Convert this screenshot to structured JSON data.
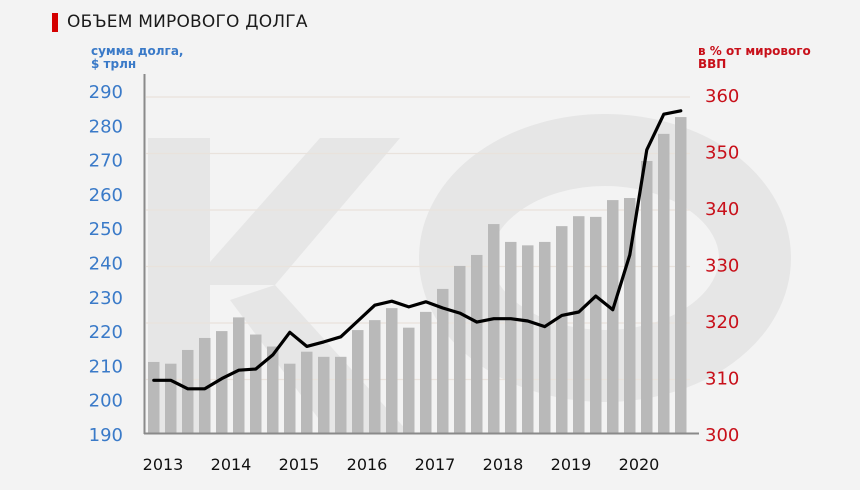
{
  "title": "ОБЪЕМ МИРОВОГО ДОЛГА",
  "left_axis_label_line1": "сумма долга,",
  "left_axis_label_line2": "$ трлн",
  "right_axis_label_line1": "в % от мирового",
  "right_axis_label_line2": "ВВП",
  "colors": {
    "accent": "#d40000",
    "left_axis": "#3a7ac8",
    "right_axis": "#c8101a",
    "bars": "#b9b9b9",
    "line": "#000000",
    "background": "#f3f3f3",
    "watermark": "#e6e6e6"
  },
  "chart_data": {
    "type": "bar+line",
    "title": "ОБЪЕМ МИРОВОГО ДОЛГА",
    "xlabel": "",
    "ylabel": "сумма долга, $ трлн",
    "y2label": "в % от мирового ВВП",
    "ylim": [
      190,
      290
    ],
    "y2lim": [
      300,
      360
    ],
    "left_ticks": [
      190,
      200,
      210,
      220,
      230,
      240,
      250,
      260,
      270,
      280,
      290
    ],
    "right_ticks": [
      300,
      310,
      320,
      330,
      340,
      350,
      360
    ],
    "x_tick_labels": [
      "2013",
      "2014",
      "2015",
      "2016",
      "2017",
      "2018",
      "2019",
      "2020"
    ],
    "grid": true,
    "legend": "none",
    "categories": [
      "2013 Q1",
      "2013 Q2",
      "2013 Q3",
      "2013 Q4",
      "2014 Q1",
      "2014 Q2",
      "2014 Q3",
      "2014 Q4",
      "2015 Q1",
      "2015 Q2",
      "2015 Q3",
      "2015 Q4",
      "2016 Q1",
      "2016 Q2",
      "2016 Q3",
      "2016 Q4",
      "2017 Q1",
      "2017 Q2",
      "2017 Q3",
      "2017 Q4",
      "2018 Q1",
      "2018 Q2",
      "2018 Q3",
      "2018 Q4",
      "2019 Q1",
      "2019 Q2",
      "2019 Q3",
      "2019 Q4",
      "2020 Q1",
      "2020 Q2",
      "2020 Q3",
      "2020 Q4"
    ],
    "series": [
      {
        "name": "Сумма долга, $ трлн",
        "type": "bar",
        "axis": "left",
        "values": [
          211,
          210.5,
          214.5,
          218,
          220,
          224,
          219,
          215.5,
          210.5,
          214,
          212.5,
          212.5,
          220.3,
          223.2,
          226.7,
          221,
          225.6,
          232.3,
          239,
          242.2,
          251.2,
          246,
          245,
          246,
          250.6,
          253.5,
          253.3,
          258.2,
          258.8,
          269.6,
          277.5,
          282.4
        ]
      },
      {
        "name": "В % от мирового ВВП",
        "type": "line",
        "axis": "right",
        "values": [
          309.5,
          309.5,
          308,
          308,
          309.8,
          311.3,
          311.5,
          314,
          318,
          315.5,
          316.3,
          317.2,
          320,
          322.8,
          323.5,
          322.5,
          323.4,
          322.3,
          321.4,
          319.8,
          320.4,
          320.4,
          320,
          319,
          321,
          321.6,
          324.4,
          322,
          331.7,
          350.3,
          356.6,
          357.2
        ]
      }
    ],
    "watermark": "KC"
  }
}
